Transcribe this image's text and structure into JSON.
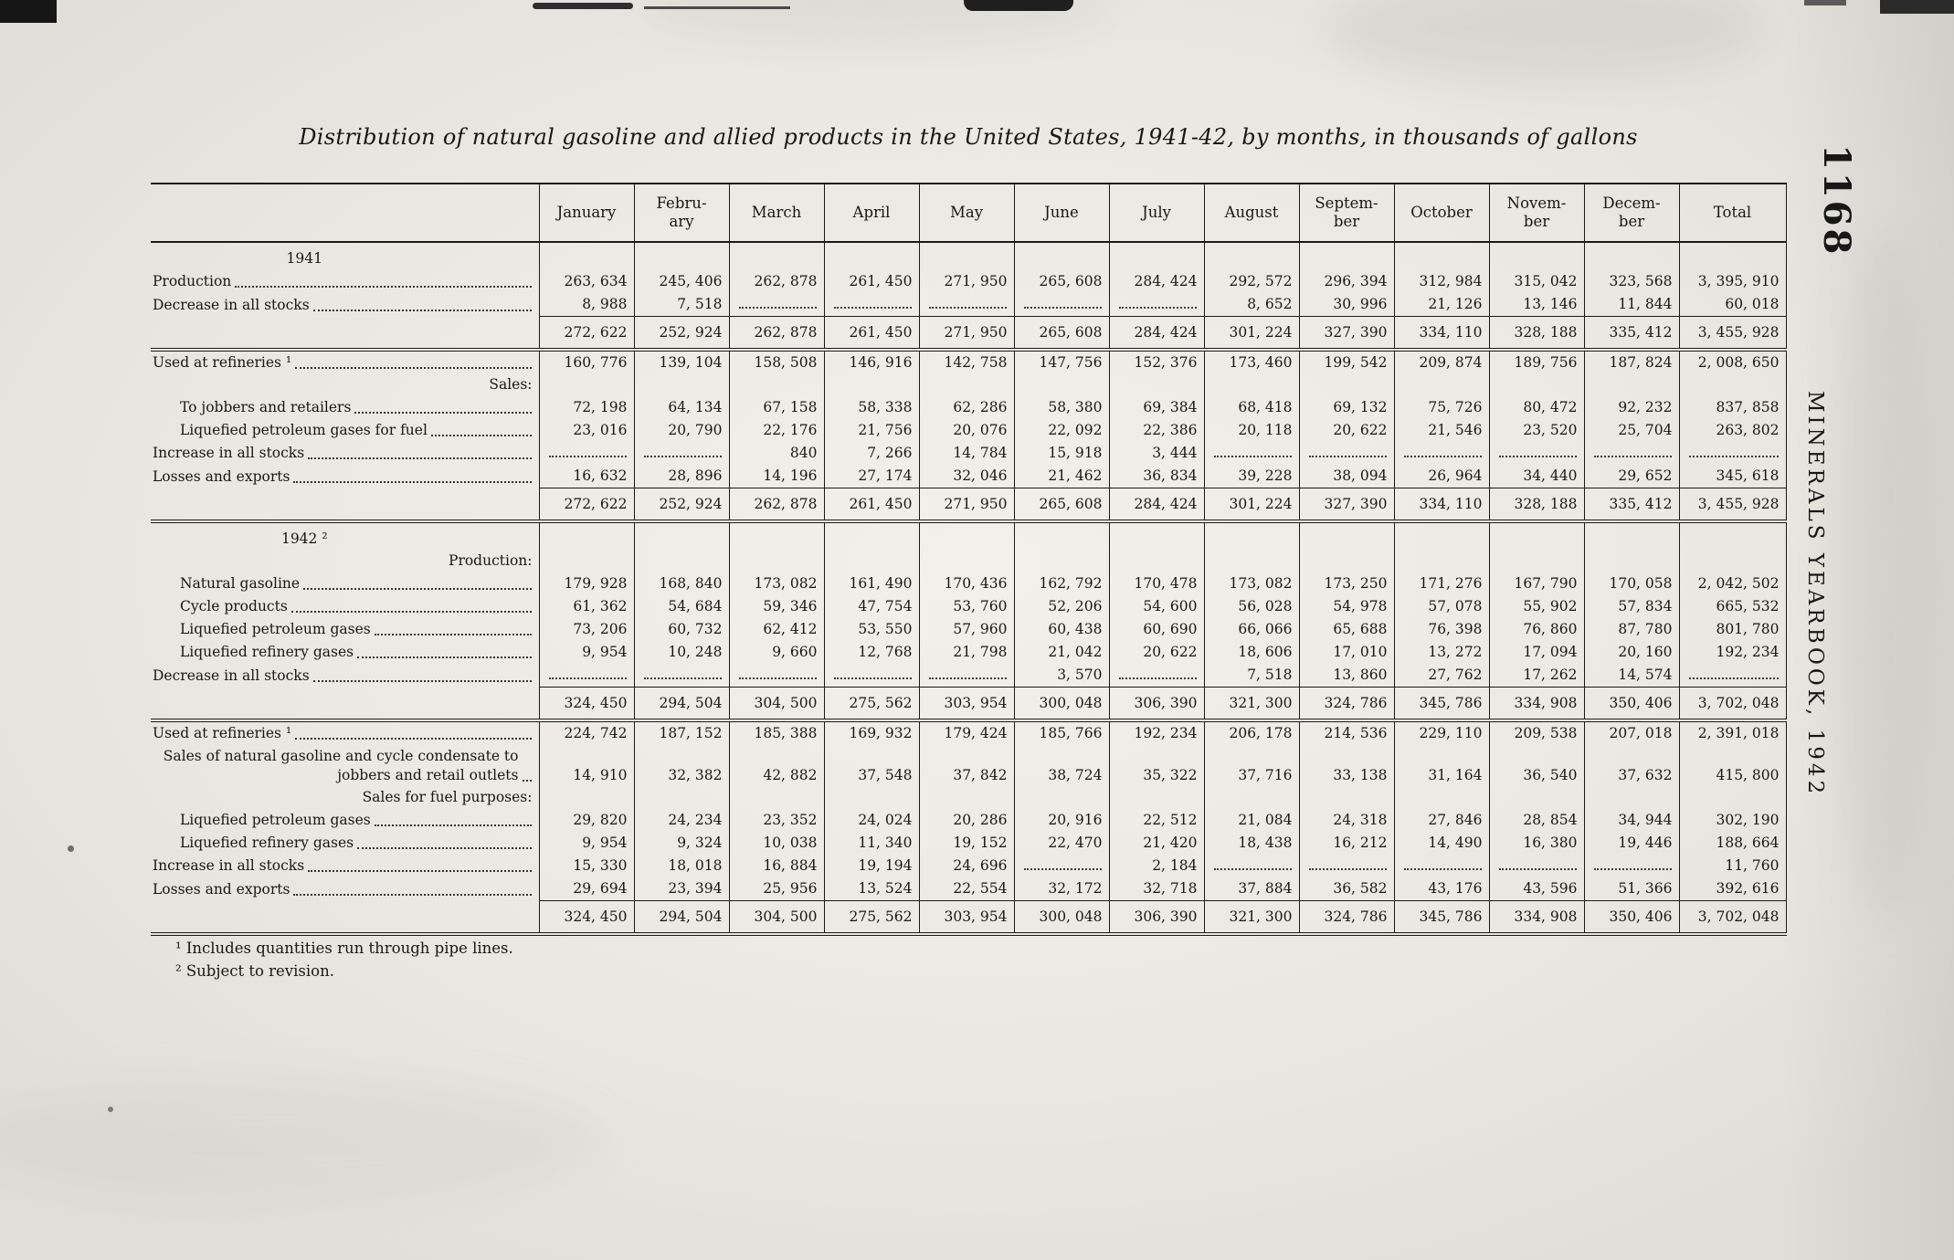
{
  "page": {
    "title": "Distribution of natural gasoline and allied products in the United States, 1941-42, by months, in thousands of gallons",
    "page_number": "1168",
    "side_label": "MINERALS YEARBOOK, 1942",
    "footnotes": [
      "¹ Includes quantities run through pipe lines.",
      "² Subject to revision."
    ]
  },
  "table": {
    "columns": [
      "January",
      "Febru-\nary",
      "March",
      "April",
      "May",
      "June",
      "July",
      "August",
      "Septem-\nber",
      "October",
      "Novem-\nber",
      "Decem-\nber",
      "Total"
    ],
    "rows": [
      {
        "type": "year",
        "label": "1941"
      },
      {
        "type": "data",
        "indent": 0,
        "label": "Production",
        "values": [
          "263, 634",
          "245, 406",
          "262, 878",
          "261, 450",
          "271, 950",
          "265, 608",
          "284, 424",
          "292, 572",
          "296, 394",
          "312, 984",
          "315, 042",
          "323, 568",
          "3, 395, 910"
        ]
      },
      {
        "type": "data",
        "indent": 0,
        "label": "Decrease in all stocks",
        "values": [
          "8, 988",
          "7, 518",
          "",
          "",
          "",
          "",
          "",
          "8, 652",
          "30, 996",
          "21, 126",
          "13, 146",
          "11, 844",
          "60, 018"
        ]
      },
      {
        "type": "subtotal",
        "values": [
          "272, 622",
          "252, 924",
          "262, 878",
          "261, 450",
          "271, 950",
          "265, 608",
          "284, 424",
          "301, 224",
          "327, 390",
          "334, 110",
          "328, 188",
          "335, 412",
          "3, 455, 928"
        ]
      },
      {
        "type": "data",
        "indent": 0,
        "label": "Used at refineries ¹",
        "values": [
          "160, 776",
          "139, 104",
          "158, 508",
          "146, 916",
          "142, 758",
          "147, 756",
          "152, 376",
          "173, 460",
          "199, 542",
          "209, 874",
          "189, 756",
          "187, 824",
          "2, 008, 650"
        ]
      },
      {
        "type": "group",
        "label": "Sales:"
      },
      {
        "type": "data",
        "indent": 1,
        "label": "To jobbers and retailers",
        "values": [
          "72, 198",
          "64, 134",
          "67, 158",
          "58, 338",
          "62, 286",
          "58, 380",
          "69, 384",
          "68, 418",
          "69, 132",
          "75, 726",
          "80, 472",
          "92, 232",
          "837, 858"
        ]
      },
      {
        "type": "data",
        "indent": 1,
        "label": "Liquefied petroleum gases for fuel",
        "values": [
          "23, 016",
          "20, 790",
          "22, 176",
          "21, 756",
          "20, 076",
          "22, 092",
          "22, 386",
          "20, 118",
          "20, 622",
          "21, 546",
          "23, 520",
          "25, 704",
          "263, 802"
        ]
      },
      {
        "type": "data",
        "indent": 0,
        "label": "Increase in all stocks",
        "values": [
          "",
          "",
          "840",
          "7, 266",
          "14, 784",
          "15, 918",
          "3, 444",
          "",
          "",
          "",
          "",
          "",
          ""
        ]
      },
      {
        "type": "data",
        "indent": 0,
        "label": "Losses and exports",
        "values": [
          "16, 632",
          "28, 896",
          "14, 196",
          "27, 174",
          "32, 046",
          "21, 462",
          "36, 834",
          "39, 228",
          "38, 094",
          "26, 964",
          "34, 440",
          "29, 652",
          "345, 618"
        ]
      },
      {
        "type": "subtotal",
        "values": [
          "272, 622",
          "252, 924",
          "262, 878",
          "261, 450",
          "271, 950",
          "265, 608",
          "284, 424",
          "301, 224",
          "327, 390",
          "334, 110",
          "328, 188",
          "335, 412",
          "3, 455, 928"
        ]
      },
      {
        "type": "year",
        "label": "1942 ²"
      },
      {
        "type": "group",
        "label": "Production:"
      },
      {
        "type": "data",
        "indent": 1,
        "label": "Natural gasoline",
        "values": [
          "179, 928",
          "168, 840",
          "173, 082",
          "161, 490",
          "170, 436",
          "162, 792",
          "170, 478",
          "173, 082",
          "173, 250",
          "171, 276",
          "167, 790",
          "170, 058",
          "2, 042, 502"
        ]
      },
      {
        "type": "data",
        "indent": 1,
        "label": "Cycle products",
        "values": [
          "61, 362",
          "54, 684",
          "59, 346",
          "47, 754",
          "53, 760",
          "52, 206",
          "54, 600",
          "56, 028",
          "54, 978",
          "57, 078",
          "55, 902",
          "57, 834",
          "665, 532"
        ]
      },
      {
        "type": "data",
        "indent": 1,
        "label": "Liquefied petroleum gases",
        "values": [
          "73, 206",
          "60, 732",
          "62, 412",
          "53, 550",
          "57, 960",
          "60, 438",
          "60, 690",
          "66, 066",
          "65, 688",
          "76, 398",
          "76, 860",
          "87, 780",
          "801, 780"
        ]
      },
      {
        "type": "data",
        "indent": 1,
        "label": "Liquefied refinery gases",
        "values": [
          "9, 954",
          "10, 248",
          "9, 660",
          "12, 768",
          "21, 798",
          "21, 042",
          "20, 622",
          "18, 606",
          "17, 010",
          "13, 272",
          "17, 094",
          "20, 160",
          "192, 234"
        ]
      },
      {
        "type": "data",
        "indent": 0,
        "label": "Decrease in all stocks",
        "values": [
          "",
          "",
          "",
          "",
          "",
          "3, 570",
          "",
          "7, 518",
          "13, 860",
          "27, 762",
          "17, 262",
          "14, 574",
          ""
        ]
      },
      {
        "type": "subtotal",
        "values": [
          "324, 450",
          "294, 504",
          "304, 500",
          "275, 562",
          "303, 954",
          "300, 048",
          "306, 390",
          "321, 300",
          "324, 786",
          "345, 786",
          "334, 908",
          "350, 406",
          "3, 702, 048"
        ]
      },
      {
        "type": "data",
        "indent": 0,
        "label": "Used at refineries ¹",
        "values": [
          "224, 742",
          "187, 152",
          "185, 388",
          "169, 932",
          "179, 424",
          "185, 766",
          "192, 234",
          "206, 178",
          "214, 536",
          "229, 110",
          "209, 538",
          "207, 018",
          "2, 391, 018"
        ]
      },
      {
        "type": "data",
        "indent": 0,
        "label": "Sales of natural gasoline and cycle condensate to jobbers and retail outlets",
        "values": [
          "14, 910",
          "32, 382",
          "42, 882",
          "37, 548",
          "37, 842",
          "38, 724",
          "35, 322",
          "37, 716",
          "33, 138",
          "31, 164",
          "36, 540",
          "37, 632",
          "415, 800"
        ]
      },
      {
        "type": "group",
        "label": "Sales for fuel purposes:"
      },
      {
        "type": "data",
        "indent": 1,
        "label": "Liquefied petroleum gases",
        "values": [
          "29, 820",
          "24, 234",
          "23, 352",
          "24, 024",
          "20, 286",
          "20, 916",
          "22, 512",
          "21, 084",
          "24, 318",
          "27, 846",
          "28, 854",
          "34, 944",
          "302, 190"
        ]
      },
      {
        "type": "data",
        "indent": 1,
        "label": "Liquefied refinery gases",
        "values": [
          "9, 954",
          "9, 324",
          "10, 038",
          "11, 340",
          "19, 152",
          "22, 470",
          "21, 420",
          "18, 438",
          "16, 212",
          "14, 490",
          "16, 380",
          "19, 446",
          "188, 664"
        ]
      },
      {
        "type": "data",
        "indent": 0,
        "label": "Increase in all stocks",
        "values": [
          "15, 330",
          "18, 018",
          "16, 884",
          "19, 194",
          "24, 696",
          "",
          "2, 184",
          "",
          "",
          "",
          "",
          "",
          "11, 760"
        ]
      },
      {
        "type": "data",
        "indent": 0,
        "label": "Losses and exports",
        "values": [
          "29, 694",
          "23, 394",
          "25, 956",
          "13, 524",
          "22, 554",
          "32, 172",
          "32, 718",
          "37, 884",
          "36, 582",
          "43, 176",
          "43, 596",
          "51, 366",
          "392, 616"
        ]
      },
      {
        "type": "subtotal",
        "values": [
          "324, 450",
          "294, 504",
          "304, 500",
          "275, 562",
          "303, 954",
          "300, 048",
          "306, 390",
          "321, 300",
          "324, 786",
          "345, 786",
          "334, 908",
          "350, 406",
          "3, 702, 048"
        ]
      }
    ]
  }
}
